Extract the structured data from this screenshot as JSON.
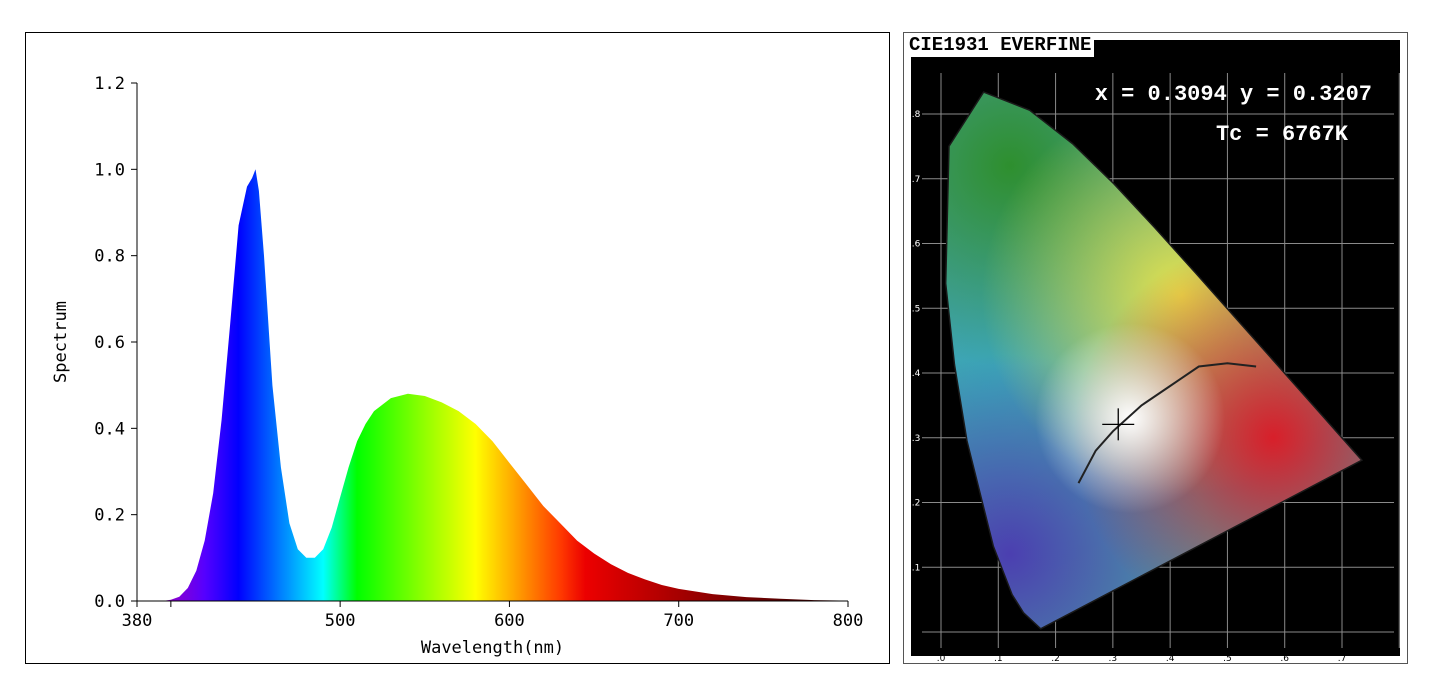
{
  "chart_data": [
    {
      "type": "area",
      "title": "",
      "xlabel": "Wavelength(nm)",
      "ylabel": "Spectrum",
      "xlim": [
        380,
        800
      ],
      "ylim": [
        0.0,
        1.2
      ],
      "x_ticks": [
        "380",
        "500",
        "600",
        "700",
        "800"
      ],
      "y_ticks": [
        "0.0",
        "0.2",
        "0.4",
        "0.6",
        "0.8",
        "1.0",
        "1.2"
      ],
      "fill": "wavelength-colored spectrum",
      "x": [
        380,
        395,
        400,
        405,
        410,
        415,
        420,
        425,
        430,
        435,
        440,
        445,
        448,
        450,
        452,
        455,
        458,
        460,
        465,
        470,
        475,
        480,
        485,
        490,
        495,
        500,
        505,
        510,
        515,
        520,
        530,
        540,
        550,
        560,
        570,
        580,
        590,
        600,
        610,
        620,
        630,
        640,
        650,
        660,
        670,
        680,
        690,
        700,
        720,
        740,
        760,
        780,
        800
      ],
      "y": [
        0.0,
        0.0,
        0.003,
        0.01,
        0.03,
        0.07,
        0.14,
        0.25,
        0.42,
        0.64,
        0.87,
        0.96,
        0.98,
        1.0,
        0.95,
        0.8,
        0.62,
        0.5,
        0.31,
        0.18,
        0.12,
        0.1,
        0.1,
        0.12,
        0.17,
        0.24,
        0.31,
        0.37,
        0.41,
        0.44,
        0.47,
        0.48,
        0.475,
        0.46,
        0.44,
        0.41,
        0.37,
        0.32,
        0.27,
        0.22,
        0.18,
        0.14,
        0.11,
        0.085,
        0.065,
        0.05,
        0.037,
        0.028,
        0.016,
        0.009,
        0.005,
        0.002,
        0.001
      ]
    },
    {
      "type": "scatter",
      "title": "CIE1931 EVERFINE",
      "point": {
        "x": 0.3094,
        "y": 0.3207
      },
      "readout_line1": "x = 0.3094 y = 0.3207",
      "readout_line2": "Tc = 6767K",
      "x_ticks": [
        ".0",
        ".1",
        ".2",
        ".3",
        ".4",
        ".5",
        ".6",
        ".7"
      ],
      "y_ticks": [
        ".1",
        ".2",
        ".3",
        ".4",
        ".5",
        ".6",
        ".7",
        ".8"
      ],
      "xlim": [
        0.0,
        0.8
      ],
      "ylim": [
        0.0,
        0.9
      ],
      "locus": [
        [
          0.1741,
          0.005
        ],
        [
          0.144,
          0.0297
        ],
        [
          0.1241,
          0.0578
        ],
        [
          0.0913,
          0.1327
        ],
        [
          0.0454,
          0.295
        ],
        [
          0.0235,
          0.4127
        ],
        [
          0.0082,
          0.5384
        ],
        [
          0.0139,
          0.7502
        ],
        [
          0.0743,
          0.8338
        ],
        [
          0.1547,
          0.8059
        ],
        [
          0.2296,
          0.7543
        ],
        [
          0.3016,
          0.6923
        ],
        [
          0.3731,
          0.6245
        ],
        [
          0.4441,
          0.5547
        ],
        [
          0.5125,
          0.4866
        ],
        [
          0.5752,
          0.4242
        ],
        [
          0.627,
          0.3725
        ],
        [
          0.6658,
          0.334
        ],
        [
          0.6915,
          0.3083
        ],
        [
          0.7347,
          0.2653
        ]
      ]
    }
  ],
  "colors": {
    "frame": "#000000",
    "cie_background": "#000000",
    "cie_title_background": "#ffffff"
  }
}
